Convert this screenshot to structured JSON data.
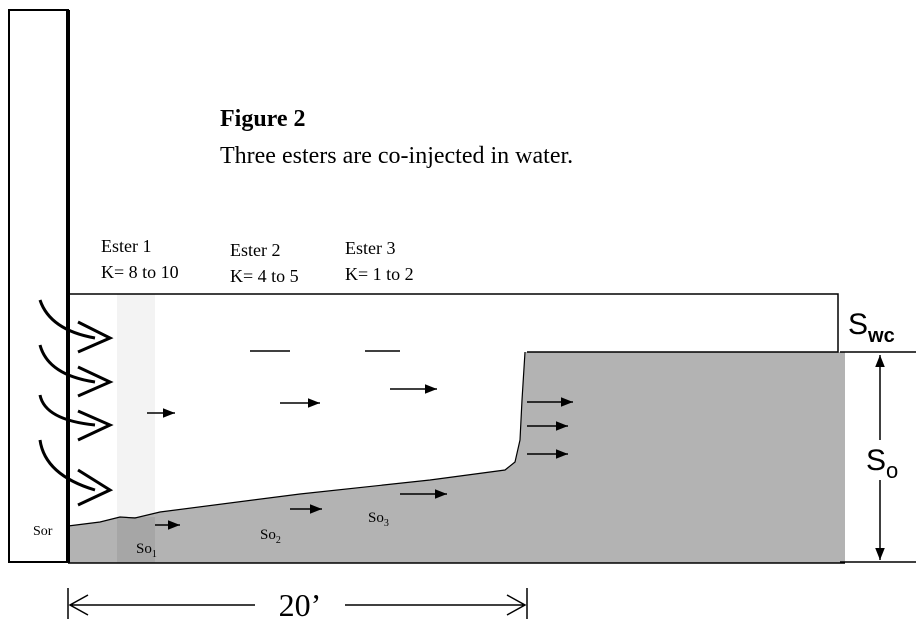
{
  "figure": {
    "title": "Figure 2",
    "caption": "Three esters are co-injected in water."
  },
  "esters": [
    {
      "name": "Ester 1",
      "k": "K= 8 to 10"
    },
    {
      "name": "Ester 2",
      "k": "K= 4 to 5"
    },
    {
      "name": "Ester 3",
      "k": "K= 1 to 2"
    }
  ],
  "labels": {
    "swc": {
      "base": "S",
      "sub": "wc"
    },
    "so": {
      "base": "S",
      "sub": "o"
    },
    "sor": "Sor",
    "so1": {
      "base": "So",
      "sub": "1"
    },
    "so2": {
      "base": "So",
      "sub": "2"
    },
    "so3": {
      "base": "So",
      "sub": "3"
    },
    "length": "20’"
  }
}
